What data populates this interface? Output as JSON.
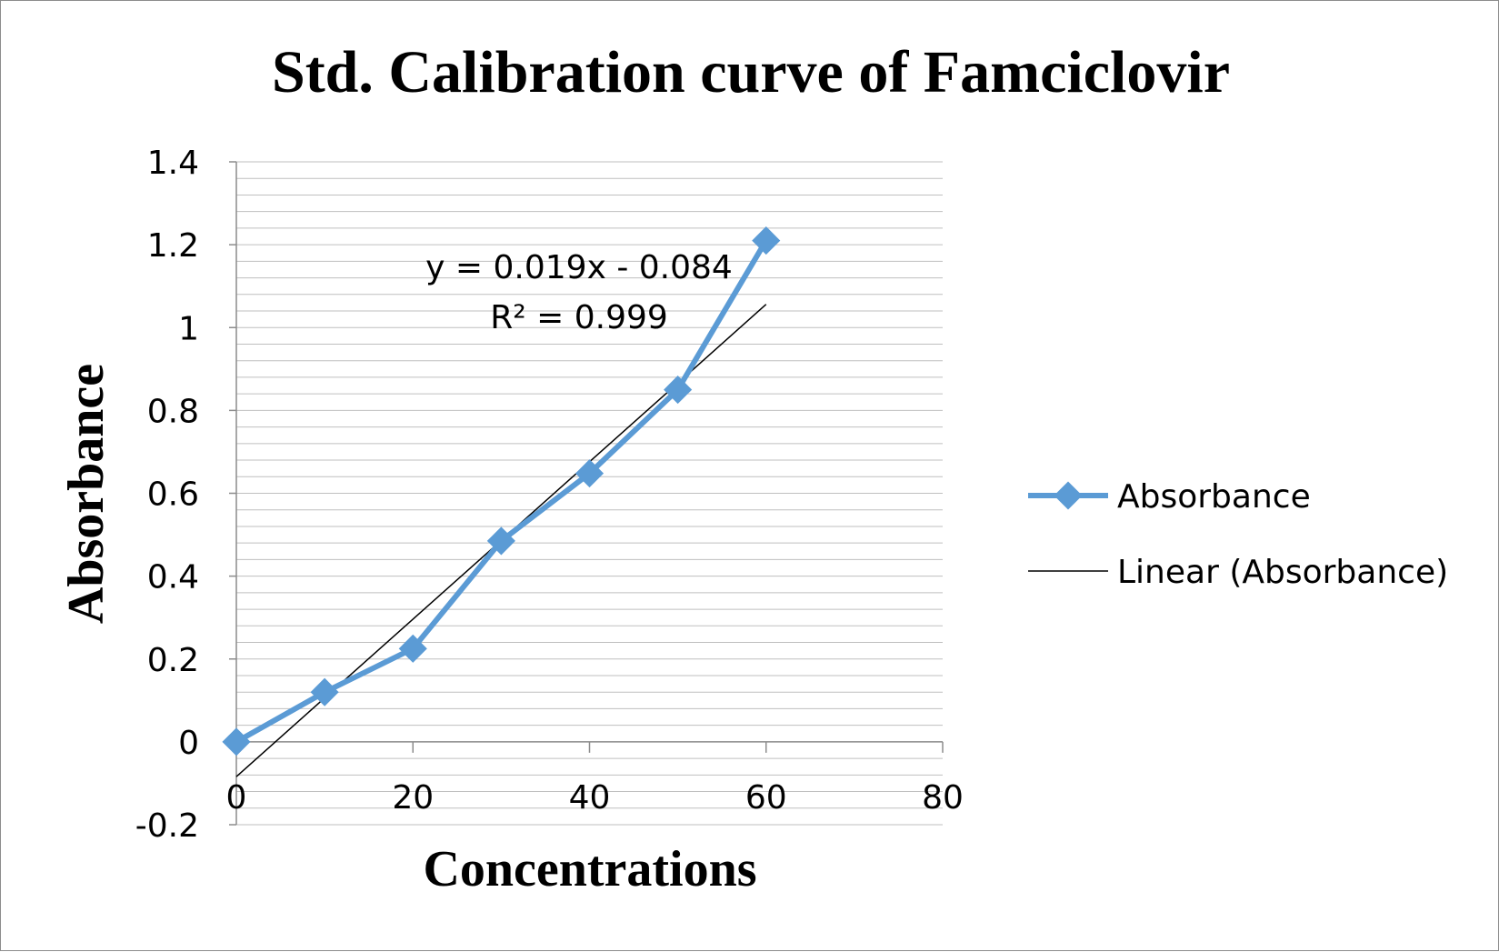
{
  "chart_data": {
    "type": "line",
    "title": "Std. Calibration curve of Famciclovir",
    "xlabel": "Concentrations",
    "ylabel": "Absorbance",
    "xlim": [
      0,
      80
    ],
    "ylim": [
      -0.2,
      1.4
    ],
    "x_ticks": [
      "0",
      "20",
      "40",
      "60",
      "80"
    ],
    "y_ticks": [
      "-0.2",
      "0",
      "0.2",
      "0.4",
      "0.6",
      "0.8",
      "1",
      "1.2",
      "1.4"
    ],
    "grid": "horizontal minor gridlines",
    "legend_position": "right",
    "series": [
      {
        "name": "Absorbance",
        "color": "#5b9bd5",
        "marker": "diamond",
        "x": [
          0,
          10,
          20,
          30,
          40,
          50,
          60
        ],
        "y": [
          0,
          0.12,
          0.225,
          0.485,
          0.648,
          0.85,
          1.21
        ]
      }
    ],
    "trendline": {
      "name": "Linear (Absorbance)",
      "color": "#000000",
      "slope": 0.019,
      "intercept": -0.084,
      "x_range": [
        0,
        60
      ],
      "equation": "y = 0.019x - 0.084",
      "r_squared_label": "R² = 0.999"
    }
  }
}
